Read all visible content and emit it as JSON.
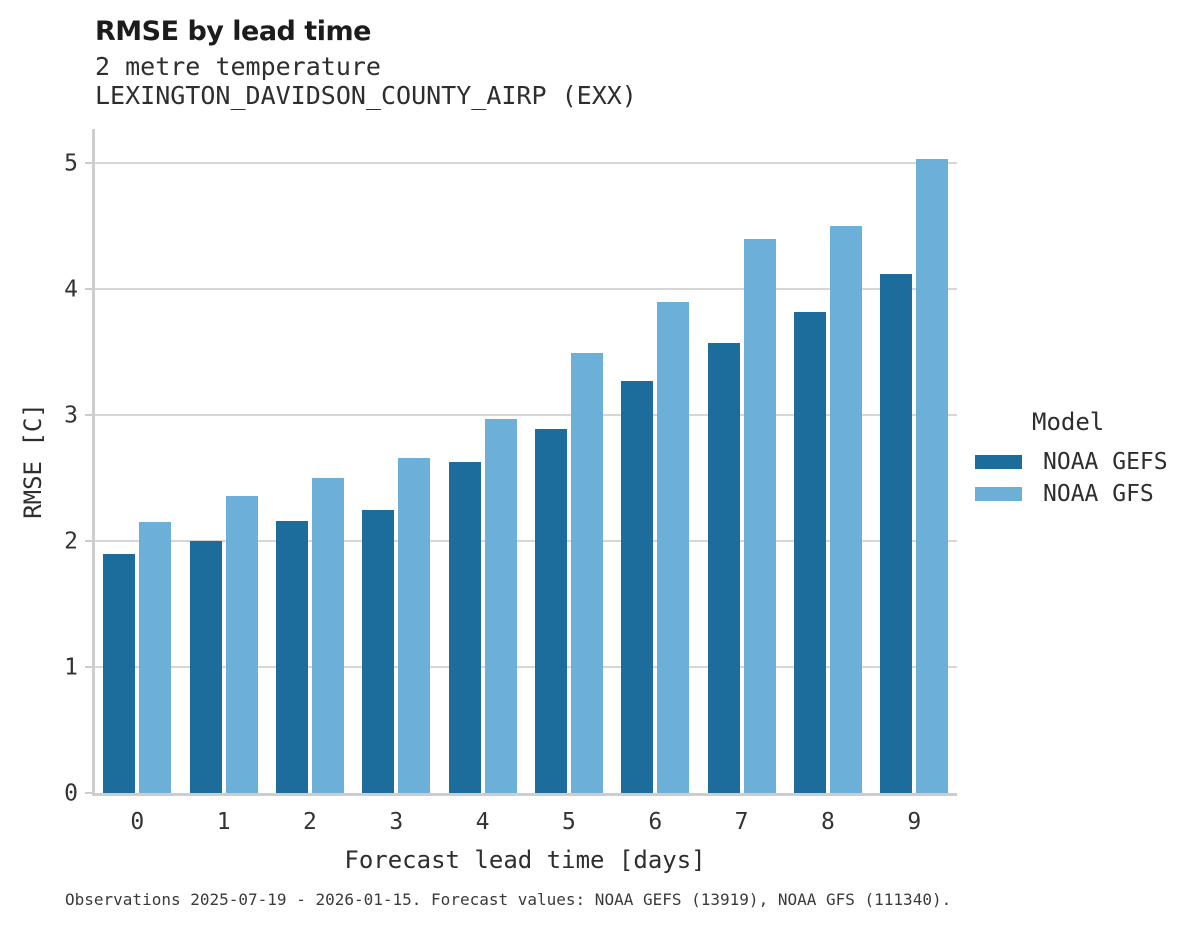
{
  "header": {
    "title": "RMSE by lead time",
    "subtitle_variable": "2 metre temperature",
    "subtitle_station": "LEXINGTON_DAVIDSON_COUNTY_AIRP (EXX)"
  },
  "chart_data": {
    "type": "bar",
    "title": "RMSE by lead time",
    "subtitle": "2 metre temperature",
    "station": "LEXINGTON_DAVIDSON_COUNTY_AIRP (EXX)",
    "categories": [
      "0",
      "1",
      "2",
      "3",
      "4",
      "5",
      "6",
      "7",
      "8",
      "9"
    ],
    "series": [
      {
        "name": "NOAA GEFS",
        "color": "#1c6d9c",
        "values": [
          1.9,
          2.0,
          2.16,
          2.25,
          2.63,
          2.89,
          3.27,
          3.57,
          3.82,
          4.12
        ]
      },
      {
        "name": "NOAA GFS",
        "color": "#6cb0d9",
        "values": [
          2.15,
          2.36,
          2.5,
          2.66,
          2.97,
          3.49,
          3.9,
          4.4,
          4.5,
          5.03
        ]
      }
    ],
    "xlabel": "Forecast lead time [days]",
    "ylabel": "RMSE [C]",
    "ylim": [
      0,
      5.27
    ],
    "yticks": [
      0,
      1,
      2,
      3,
      4,
      5
    ],
    "grid": "horizontal-only",
    "legend_position": "right"
  },
  "legend": {
    "title": "Model",
    "entries": [
      "NOAA GEFS",
      "NOAA GFS"
    ]
  },
  "footer": {
    "note": "Observations 2025-07-19 - 2026-01-15. Forecast values: NOAA GEFS (13919), NOAA GFS (111340)."
  },
  "colors": {
    "gefs_bar": "#1c6d9c",
    "gfs_bar": "#6cb0d9",
    "gridline": "#d6d6d6",
    "spine": "#cdcdcd",
    "background": "#ffffff",
    "title_text": "#1c1c1c",
    "body_text": "#2e2e2e"
  }
}
